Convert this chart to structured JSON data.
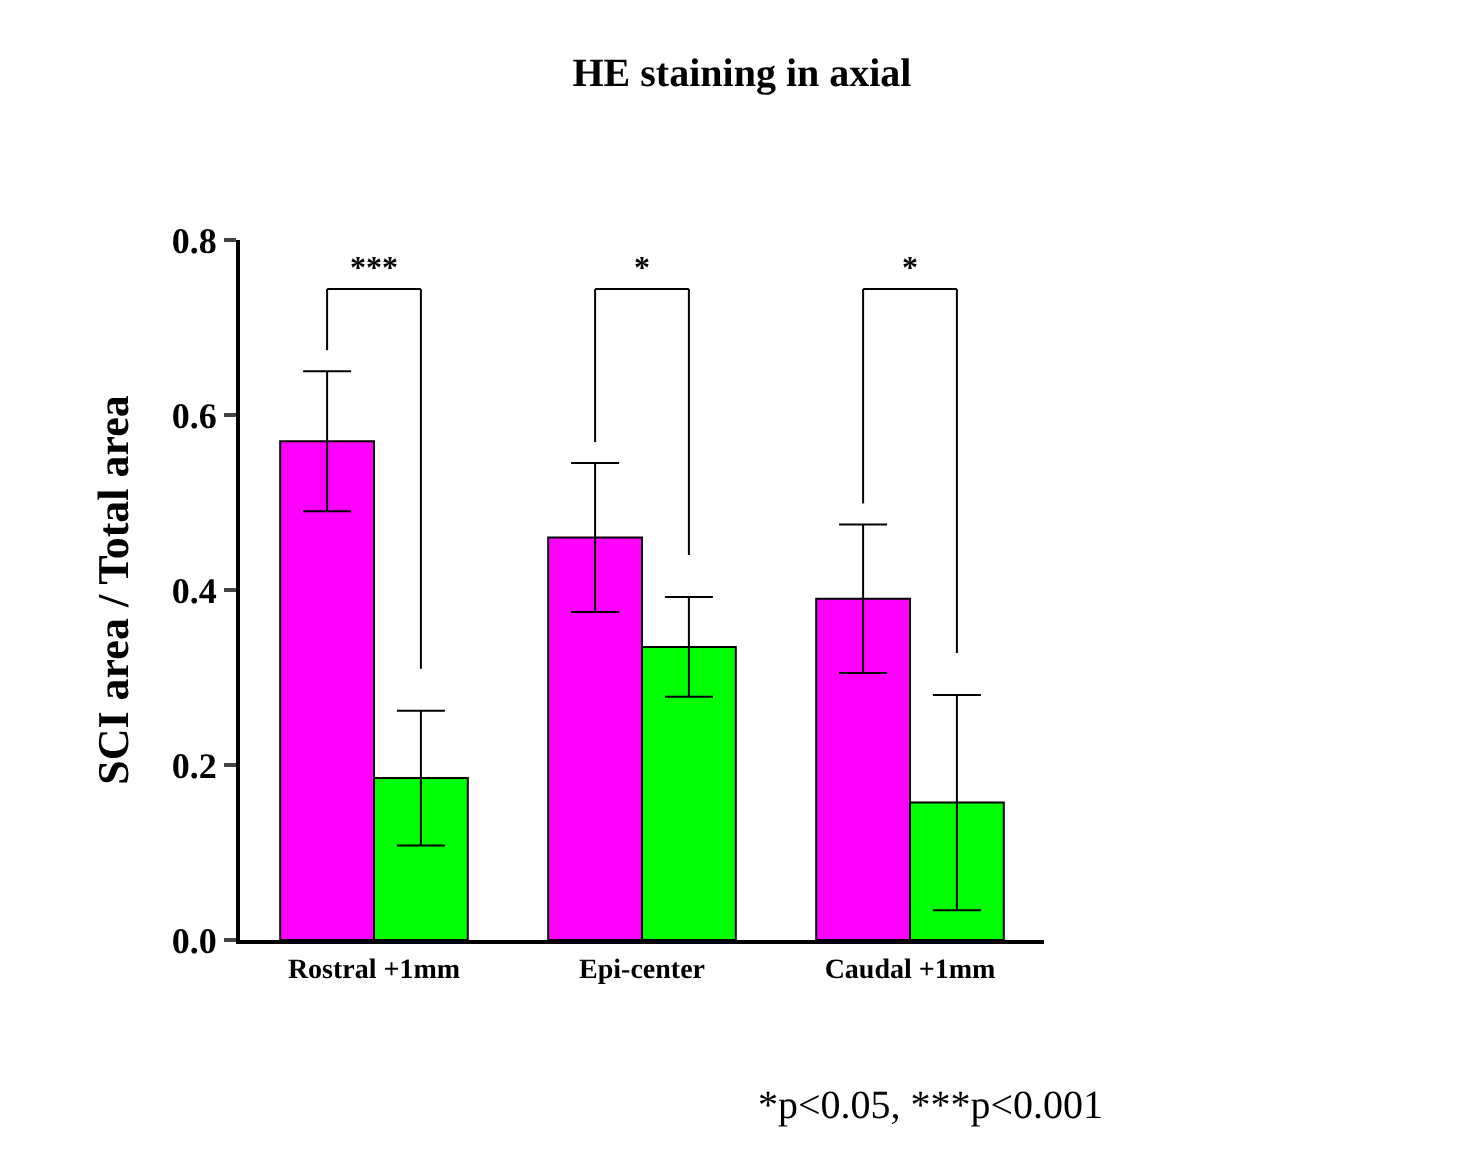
{
  "chart_data": {
    "type": "bar",
    "title": "HE staining in axial",
    "ylabel": "SCI area / Total area",
    "categories": [
      "Rostral +1mm",
      "Epi-center",
      "Caudal +1mm"
    ],
    "series": [
      {
        "color": "#ff00ff",
        "values": [
          0.57,
          0.46,
          0.39
        ],
        "errors": [
          0.08,
          0.085,
          0.085
        ]
      },
      {
        "color": "#00ff00",
        "values": [
          0.185,
          0.335,
          0.157
        ],
        "errors": [
          0.077,
          0.057,
          0.123
        ]
      }
    ],
    "ylim": [
      0,
      0.8
    ],
    "yticks": [
      {
        "value": 0,
        "label": "0.0"
      },
      0.2,
      0.4,
      0.6,
      0.8
    ],
    "annotations": [
      "***",
      "*",
      "*",
      "*p<0.05, ***p<0.001"
    ]
  }
}
